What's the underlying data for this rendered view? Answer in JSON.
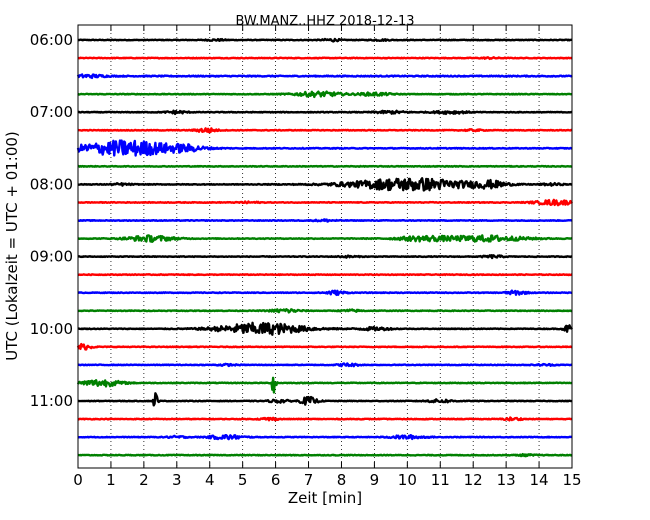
{
  "chart_data": {
    "type": "line",
    "title": "BW.MANZ..HHZ 2018-12-13",
    "xlabel": "Zeit  [min]",
    "ylabel": "UTC (Lokalzeit = UTC + 01:00)",
    "xlim": [
      0,
      15
    ],
    "x_ticks": [
      "0",
      "1",
      "2",
      "3",
      "4",
      "5",
      "6",
      "7",
      "8",
      "9",
      "10",
      "11",
      "12",
      "13",
      "14",
      "15"
    ],
    "y_tick_labels": [
      "06:00",
      "07:00",
      "08:00",
      "09:00",
      "10:00",
      "11:00"
    ],
    "y_tick_trace_index": [
      0,
      4,
      8,
      12,
      16,
      20
    ],
    "minutes_per_trace": 15,
    "grid": "vertical dotted",
    "trace_colors": [
      "#000000",
      "#ff0000",
      "#0000ff",
      "#008000"
    ],
    "traces": [
      {
        "start": "06:00",
        "noise": 0.7,
        "events": [
          {
            "t": 4.2,
            "amp": 1.4,
            "dur": 0.3
          },
          {
            "t": 7.7,
            "amp": 2.5,
            "dur": 0.25
          },
          {
            "t": 9.2,
            "amp": 1.2,
            "dur": 0.3
          }
        ]
      },
      {
        "start": "06:15",
        "noise": 0.7,
        "events": [
          {
            "t": 12.5,
            "amp": 1.2,
            "dur": 0.3
          }
        ]
      },
      {
        "start": "06:30",
        "noise": 1.0,
        "events": [
          {
            "t": 0.3,
            "amp": 3.0,
            "dur": 0.5
          }
        ]
      },
      {
        "start": "06:45",
        "noise": 0.7,
        "events": [
          {
            "t": 7.3,
            "amp": 5.0,
            "dur": 0.7
          },
          {
            "t": 9.0,
            "amp": 3.0,
            "dur": 0.5
          }
        ]
      },
      {
        "start": "07:00",
        "noise": 0.7,
        "events": [
          {
            "t": 3.0,
            "amp": 3.0,
            "dur": 0.3
          },
          {
            "t": 9.5,
            "amp": 2.5,
            "dur": 0.5
          },
          {
            "t": 11.3,
            "amp": 2.8,
            "dur": 0.5
          }
        ]
      },
      {
        "start": "07:15",
        "noise": 0.7,
        "events": [
          {
            "t": 3.9,
            "amp": 4.5,
            "dur": 0.3
          },
          {
            "t": 12.0,
            "amp": 1.5,
            "dur": 0.3
          }
        ]
      },
      {
        "start": "07:30",
        "noise": 0.8,
        "events": [
          {
            "t": 1.5,
            "amp": 16.0,
            "dur": 1.5
          },
          {
            "t": 3.3,
            "amp": 4.0,
            "dur": 0.5
          }
        ]
      },
      {
        "start": "07:45",
        "noise": 0.7,
        "events": []
      },
      {
        "start": "08:00",
        "noise": 0.7,
        "events": [
          {
            "t": 1.3,
            "amp": 2.0,
            "dur": 0.3
          },
          {
            "t": 10.1,
            "amp": 13.0,
            "dur": 1.8
          },
          {
            "t": 12.5,
            "amp": 6.0,
            "dur": 0.5
          },
          {
            "t": 14.4,
            "amp": 2.0,
            "dur": 0.3
          }
        ]
      },
      {
        "start": "08:15",
        "noise": 0.7,
        "events": [
          {
            "t": 5.2,
            "amp": 1.5,
            "dur": 0.3
          },
          {
            "t": 14.5,
            "amp": 5.0,
            "dur": 0.6
          }
        ]
      },
      {
        "start": "08:30",
        "noise": 0.7,
        "events": [
          {
            "t": 7.5,
            "amp": 2.0,
            "dur": 0.3
          }
        ]
      },
      {
        "start": "08:45",
        "noise": 0.7,
        "events": [
          {
            "t": 2.2,
            "amp": 6.0,
            "dur": 0.7
          },
          {
            "t": 10.5,
            "amp": 5.0,
            "dur": 0.8
          },
          {
            "t": 12.4,
            "amp": 6.0,
            "dur": 1.2
          }
        ]
      },
      {
        "start": "09:00",
        "noise": 0.7,
        "events": [
          {
            "t": 8.2,
            "amp": 1.5,
            "dur": 0.3
          },
          {
            "t": 12.6,
            "amp": 2.5,
            "dur": 0.3
          }
        ]
      },
      {
        "start": "09:15",
        "noise": 0.7,
        "events": []
      },
      {
        "start": "09:30",
        "noise": 0.7,
        "events": [
          {
            "t": 7.8,
            "amp": 4.0,
            "dur": 0.3
          },
          {
            "t": 13.3,
            "amp": 4.0,
            "dur": 0.3
          }
        ]
      },
      {
        "start": "09:45",
        "noise": 0.7,
        "events": [
          {
            "t": 6.3,
            "amp": 4.0,
            "dur": 0.4
          },
          {
            "t": 8.3,
            "amp": 2.0,
            "dur": 0.3
          }
        ]
      },
      {
        "start": "10:00",
        "noise": 0.7,
        "events": [
          {
            "t": 5.6,
            "amp": 12.0,
            "dur": 1.3
          },
          {
            "t": 9.0,
            "amp": 3.0,
            "dur": 0.5
          },
          {
            "t": 14.9,
            "amp": 8.0,
            "dur": 0.15
          }
        ]
      },
      {
        "start": "10:15",
        "noise": 0.7,
        "events": [
          {
            "t": 0.1,
            "amp": 6.0,
            "dur": 0.3
          }
        ]
      },
      {
        "start": "10:30",
        "noise": 0.7,
        "events": [
          {
            "t": 4.5,
            "amp": 1.5,
            "dur": 0.3
          },
          {
            "t": 8.2,
            "amp": 3.0,
            "dur": 0.3
          },
          {
            "t": 14.2,
            "amp": 1.5,
            "dur": 0.3
          }
        ]
      },
      {
        "start": "10:45",
        "noise": 0.7,
        "events": [
          {
            "t": 0.7,
            "amp": 7.0,
            "dur": 0.6
          },
          {
            "t": 5.95,
            "amp": 28.0,
            "dur": 0.06
          }
        ]
      },
      {
        "start": "11:00",
        "noise": 0.7,
        "events": [
          {
            "t": 2.35,
            "amp": 20.0,
            "dur": 0.06
          },
          {
            "t": 6.1,
            "amp": 3.0,
            "dur": 0.3
          },
          {
            "t": 7.0,
            "amp": 8.0,
            "dur": 0.25
          },
          {
            "t": 11.0,
            "amp": 3.0,
            "dur": 0.4
          }
        ]
      },
      {
        "start": "11:15",
        "noise": 0.7,
        "events": [
          {
            "t": 5.8,
            "amp": 3.0,
            "dur": 0.25
          },
          {
            "t": 13.2,
            "amp": 3.0,
            "dur": 0.25
          }
        ]
      },
      {
        "start": "11:30",
        "noise": 0.7,
        "events": [
          {
            "t": 3.0,
            "amp": 2.0,
            "dur": 0.3
          },
          {
            "t": 4.5,
            "amp": 4.5,
            "dur": 0.5
          },
          {
            "t": 10.0,
            "amp": 3.5,
            "dur": 0.5
          }
        ]
      },
      {
        "start": "11:45",
        "noise": 0.7,
        "events": [
          {
            "t": 13.6,
            "amp": 1.5,
            "dur": 0.3
          }
        ]
      }
    ]
  }
}
